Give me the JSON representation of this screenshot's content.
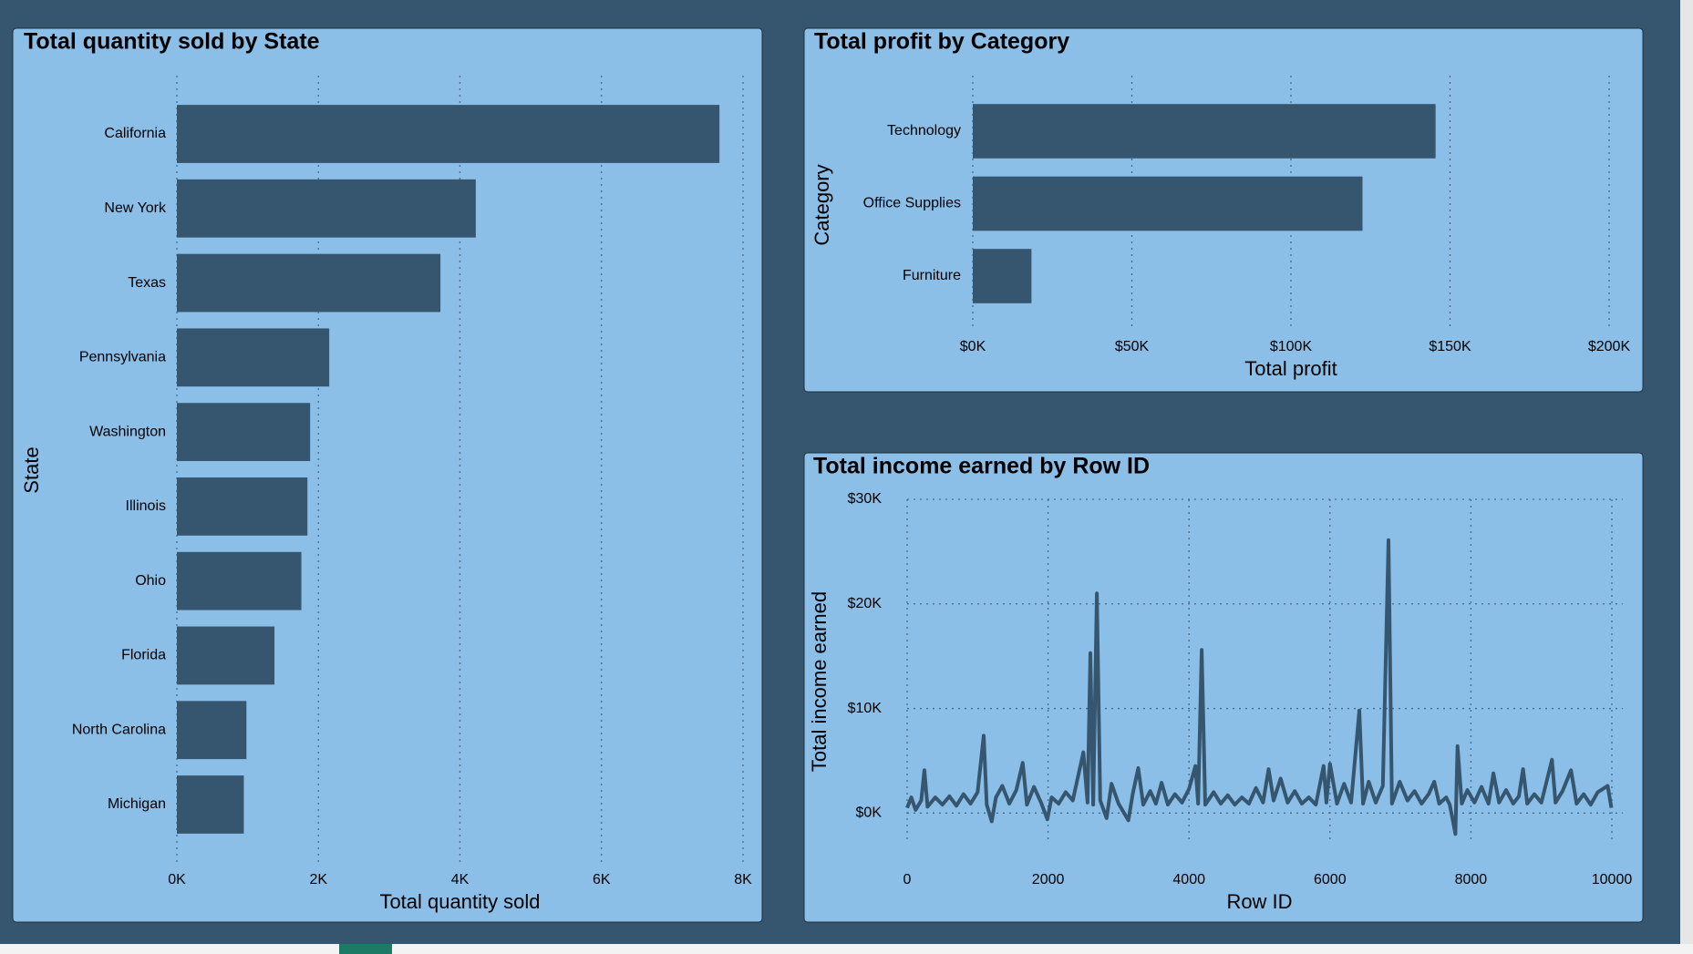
{
  "chart_data": [
    {
      "type": "hbar",
      "title": "Total quantity sold by State",
      "x_label": "Total quantity sold",
      "y_label": "State",
      "categories": [
        "California",
        "New York",
        "Texas",
        "Pennsylvania",
        "Washington",
        "Illinois",
        "Ohio",
        "Florida",
        "North Carolina",
        "Michigan"
      ],
      "values": [
        7667,
        4224,
        3724,
        2153,
        1883,
        1845,
        1759,
        1379,
        983,
        946
      ],
      "color": "#36566f",
      "xlim": [
        0,
        8000
      ],
      "xticks": [
        {
          "value": 0,
          "label": "0K"
        },
        {
          "value": 2000,
          "label": "2K"
        },
        {
          "value": 4000,
          "label": "4K"
        },
        {
          "value": 6000,
          "label": "6K"
        },
        {
          "value": 8000,
          "label": "8K"
        }
      ],
      "grid": true
    },
    {
      "type": "hbar",
      "title": "Total profit by Category",
      "x_label": "Total profit",
      "y_label": "Category",
      "categories": [
        "Technology",
        "Office Supplies",
        "Furniture"
      ],
      "values": [
        145455,
        122491,
        18451
      ],
      "color": "#36566f",
      "xlim": [
        0,
        200000
      ],
      "xticks": [
        {
          "value": 0,
          "label": "$0K"
        },
        {
          "value": 50000,
          "label": "$50K"
        },
        {
          "value": 100000,
          "label": "$100K"
        },
        {
          "value": 150000,
          "label": "$150K"
        },
        {
          "value": 200000,
          "label": "$200K"
        }
      ],
      "grid": true
    },
    {
      "type": "line",
      "title": "Total income earned by Row ID",
      "x_label": "Row ID",
      "y_label": "Total income earned",
      "x": [
        0,
        60,
        120,
        200,
        245,
        290,
        400,
        500,
        600,
        700,
        800,
        900,
        1000,
        1087,
        1130,
        1200,
        1260,
        1350,
        1450,
        1550,
        1640,
        1700,
        1800,
        1900,
        1990,
        2050,
        2150,
        2250,
        2350,
        2500,
        2560,
        2600,
        2640,
        2692,
        2740,
        2830,
        2900,
        3000,
        3140,
        3200,
        3280,
        3350,
        3450,
        3530,
        3610,
        3700,
        3800,
        3900,
        4000,
        4090,
        4130,
        4180,
        4230,
        4350,
        4450,
        4550,
        4650,
        4750,
        4850,
        4950,
        5050,
        5130,
        5200,
        5300,
        5400,
        5500,
        5600,
        5700,
        5800,
        5910,
        5950,
        6000,
        6100,
        6200,
        6300,
        6416,
        6470,
        6550,
        6650,
        6750,
        6830,
        6880,
        6990,
        7100,
        7200,
        7300,
        7400,
        7480,
        7550,
        7650,
        7700,
        7780,
        7810,
        7870,
        7950,
        8050,
        8150,
        8250,
        8320,
        8400,
        8500,
        8600,
        8680,
        8740,
        8800,
        8900,
        9000,
        9150,
        9200,
        9300,
        9420,
        9500,
        9600,
        9700,
        9800,
        9940,
        9994
      ],
      "values": [
        500,
        1500,
        300,
        1200,
        4100,
        600,
        1500,
        800,
        1600,
        700,
        1800,
        900,
        2000,
        7400,
        800,
        -800,
        1500,
        2600,
        900,
        2200,
        4800,
        800,
        2500,
        1000,
        -600,
        1500,
        900,
        2000,
        1200,
        5800,
        1000,
        15300,
        800,
        21000,
        1200,
        -500,
        2800,
        900,
        -700,
        1800,
        4300,
        800,
        2100,
        900,
        2900,
        800,
        1800,
        1000,
        2300,
        4500,
        900,
        15600,
        800,
        2000,
        900,
        1700,
        800,
        1500,
        900,
        2400,
        1000,
        4200,
        1200,
        3300,
        1000,
        2100,
        900,
        1500,
        800,
        4500,
        1000,
        4700,
        900,
        2800,
        1000,
        9800,
        900,
        3000,
        1000,
        2600,
        26100,
        900,
        3000,
        1200,
        2100,
        900,
        1800,
        3000,
        900,
        1500,
        800,
        -2000,
        6400,
        900,
        2200,
        1000,
        2500,
        900,
        3800,
        1000,
        2200,
        900,
        1600,
        4200,
        900,
        1800,
        1000,
        5100,
        1000,
        2100,
        4100,
        900,
        1800,
        800,
        2000,
        2600,
        500
      ],
      "color": "#36566f",
      "xlim": [
        0,
        10000
      ],
      "ylim": [
        -2500,
        30000
      ],
      "xticks": [
        0,
        2000,
        4000,
        6000,
        8000,
        10000
      ],
      "yticks": [
        {
          "value": 0,
          "label": "$0K"
        },
        {
          "value": 10000,
          "label": "$10K"
        },
        {
          "value": 20000,
          "label": "$20K"
        },
        {
          "value": 30000,
          "label": "$30K"
        }
      ],
      "grid": true
    }
  ]
}
